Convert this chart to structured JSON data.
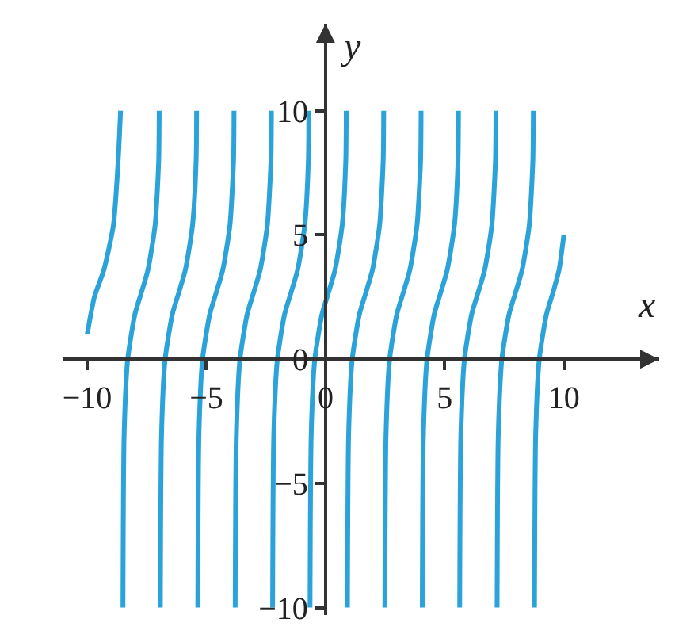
{
  "chart_data": {
    "type": "line",
    "xlabel": "x",
    "ylabel": "y",
    "xlim": [
      -11,
      14
    ],
    "ylim": [
      -10.3,
      13.5
    ],
    "xticks": [
      {
        "value": -10,
        "label": "−10"
      },
      {
        "value": -5,
        "label": "−5"
      },
      0,
      5,
      10
    ],
    "yticks": [
      {
        "value": -10,
        "label": "−10"
      },
      {
        "value": -5,
        "label": "−5"
      },
      0,
      5,
      10
    ],
    "marker": "none",
    "line_style": "solid",
    "series": [
      {
        "color": "#2ba3d8",
        "x": [
          -10,
          -9.7,
          -9.3,
          -8.9,
          -8.7,
          -8.6
        ],
        "values": [
          1,
          2.5,
          3.6,
          5.4,
          8,
          10
        ]
      },
      {
        "color": "#2ba3d8",
        "x": [
          -8.5,
          -8.45,
          -8.3,
          -8.0,
          -7.72,
          -7.45,
          -7.15,
          -7.0,
          -6.98
        ],
        "values": [
          -10,
          -3,
          0,
          1.8,
          2.7,
          3.6,
          5.4,
          8,
          10
        ]
      },
      {
        "color": "#2ba3d8",
        "x": [
          -6.93,
          -6.88,
          -6.73,
          -6.43,
          -6.15,
          -5.88,
          -5.58,
          -5.43,
          -5.41
        ],
        "values": [
          -10,
          -3,
          0,
          1.8,
          2.7,
          3.6,
          5.4,
          8,
          10
        ]
      },
      {
        "color": "#2ba3d8",
        "x": [
          -5.36,
          -5.31,
          -5.16,
          -4.86,
          -4.58,
          -4.31,
          -4.01,
          -3.86,
          -3.84
        ],
        "values": [
          -10,
          -3,
          0,
          1.8,
          2.7,
          3.6,
          5.4,
          8,
          10
        ]
      },
      {
        "color": "#2ba3d8",
        "x": [
          -3.79,
          -3.74,
          -3.59,
          -3.29,
          -3.01,
          -2.74,
          -2.44,
          -2.29,
          -2.27
        ],
        "values": [
          -10,
          -3,
          0,
          1.8,
          2.7,
          3.6,
          5.4,
          8,
          10
        ]
      },
      {
        "color": "#2ba3d8",
        "x": [
          -2.22,
          -2.17,
          -2.02,
          -1.72,
          -1.44,
          -1.17,
          -0.87,
          -0.72,
          -0.7
        ],
        "values": [
          -10,
          -3,
          0,
          1.8,
          2.7,
          3.6,
          5.4,
          8,
          10
        ]
      },
      {
        "color": "#2ba3d8",
        "x": [
          -0.65,
          -0.6,
          -0.45,
          -0.15,
          0.13,
          0.4,
          0.7,
          0.85,
          0.87
        ],
        "values": [
          -10,
          -3,
          0,
          1.8,
          2.7,
          3.6,
          5.4,
          8,
          10
        ]
      },
      {
        "color": "#2ba3d8",
        "x": [
          0.92,
          0.97,
          1.12,
          1.42,
          1.7,
          1.97,
          2.27,
          2.42,
          2.44
        ],
        "values": [
          -10,
          -3,
          0,
          1.8,
          2.7,
          3.6,
          5.4,
          8,
          10
        ]
      },
      {
        "color": "#2ba3d8",
        "x": [
          2.49,
          2.54,
          2.69,
          2.99,
          3.27,
          3.54,
          3.84,
          3.99,
          4.01
        ],
        "values": [
          -10,
          -3,
          0,
          1.8,
          2.7,
          3.6,
          5.4,
          8,
          10
        ]
      },
      {
        "color": "#2ba3d8",
        "x": [
          4.06,
          4.11,
          4.26,
          4.56,
          4.84,
          5.11,
          5.41,
          5.56,
          5.58
        ],
        "values": [
          -10,
          -3,
          0,
          1.8,
          2.7,
          3.6,
          5.4,
          8,
          10
        ]
      },
      {
        "color": "#2ba3d8",
        "x": [
          5.63,
          5.68,
          5.83,
          6.13,
          6.41,
          6.68,
          6.98,
          7.13,
          7.15
        ],
        "values": [
          -10,
          -3,
          0,
          1.8,
          2.7,
          3.6,
          5.4,
          8,
          10
        ]
      },
      {
        "color": "#2ba3d8",
        "x": [
          7.2,
          7.25,
          7.4,
          7.7,
          7.98,
          8.25,
          8.55,
          8.7,
          8.72
        ],
        "values": [
          -10,
          -3,
          0,
          1.8,
          2.7,
          3.6,
          5.4,
          8,
          10
        ]
      },
      {
        "color": "#2ba3d8",
        "x": [
          8.77,
          8.82,
          8.97,
          9.27,
          9.55,
          9.8,
          10
        ],
        "values": [
          -10,
          -3,
          0,
          1.8,
          2.7,
          3.6,
          5
        ]
      }
    ]
  }
}
